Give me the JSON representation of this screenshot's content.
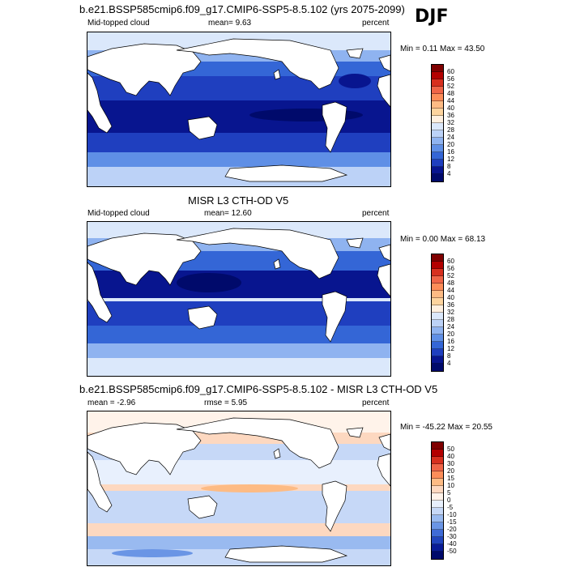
{
  "season": "DJF",
  "panels": [
    {
      "title": "b.e21.BSSP585cmip6.f09_g17.CMIP6-SSP5-8.5.102 (yrs 2075-2099)",
      "left_label": "Mid-topped cloud",
      "center_label": "mean=   9.63",
      "right_label": "percent",
      "range": "Min =   0.11 Max =  43.50",
      "colorbar": [
        "60",
        "56",
        "52",
        "48",
        "44",
        "40",
        "36",
        "32",
        "28",
        "24",
        "20",
        "16",
        "12",
        "8",
        "4"
      ]
    },
    {
      "title": "MISR L3 CTH-OD V5",
      "left_label": "Mid-topped cloud",
      "center_label": "mean=  12.60",
      "right_label": "percent",
      "range": "Min =   0.00 Max =  68.13",
      "colorbar": [
        "60",
        "56",
        "52",
        "48",
        "44",
        "40",
        "36",
        "32",
        "28",
        "24",
        "20",
        "16",
        "12",
        "8",
        "4"
      ]
    },
    {
      "title": "b.e21.BSSP585cmip6.f09_g17.CMIP6-SSP5-8.5.102 - MISR L3 CTH-OD V5",
      "left_label": "mean =  -2.96",
      "center_label": "rmse =   5.95",
      "right_label": "percent",
      "range": "Min = -45.22 Max =  20.55",
      "colorbar": [
        "50",
        "40",
        "30",
        "20",
        "15",
        "10",
        "5",
        "0",
        "-5",
        "-10",
        "-15",
        "-20",
        "-30",
        "-40",
        "-50"
      ]
    }
  ],
  "colors": {
    "seq": [
      "#7f0000",
      "#b30000",
      "#d7301f",
      "#ef6548",
      "#fc8d59",
      "#fdbb84",
      "#fdd49e",
      "#fff0e0",
      "#dbe8fb",
      "#bcd2f7",
      "#8fb3f0",
      "#5f8fe6",
      "#3466d6",
      "#1f3fbf",
      "#08158f",
      "#000a6b"
    ],
    "div": [
      "#7f0000",
      "#b30000",
      "#d7301f",
      "#ef6548",
      "#fc8d59",
      "#fdbb84",
      "#fdd8c0",
      "#fff3ea",
      "#e8f0fd",
      "#c6d8f7",
      "#99baf0",
      "#6a95e5",
      "#3f6bd6",
      "#2145bd",
      "#0a1c96",
      "#000a6b"
    ]
  }
}
